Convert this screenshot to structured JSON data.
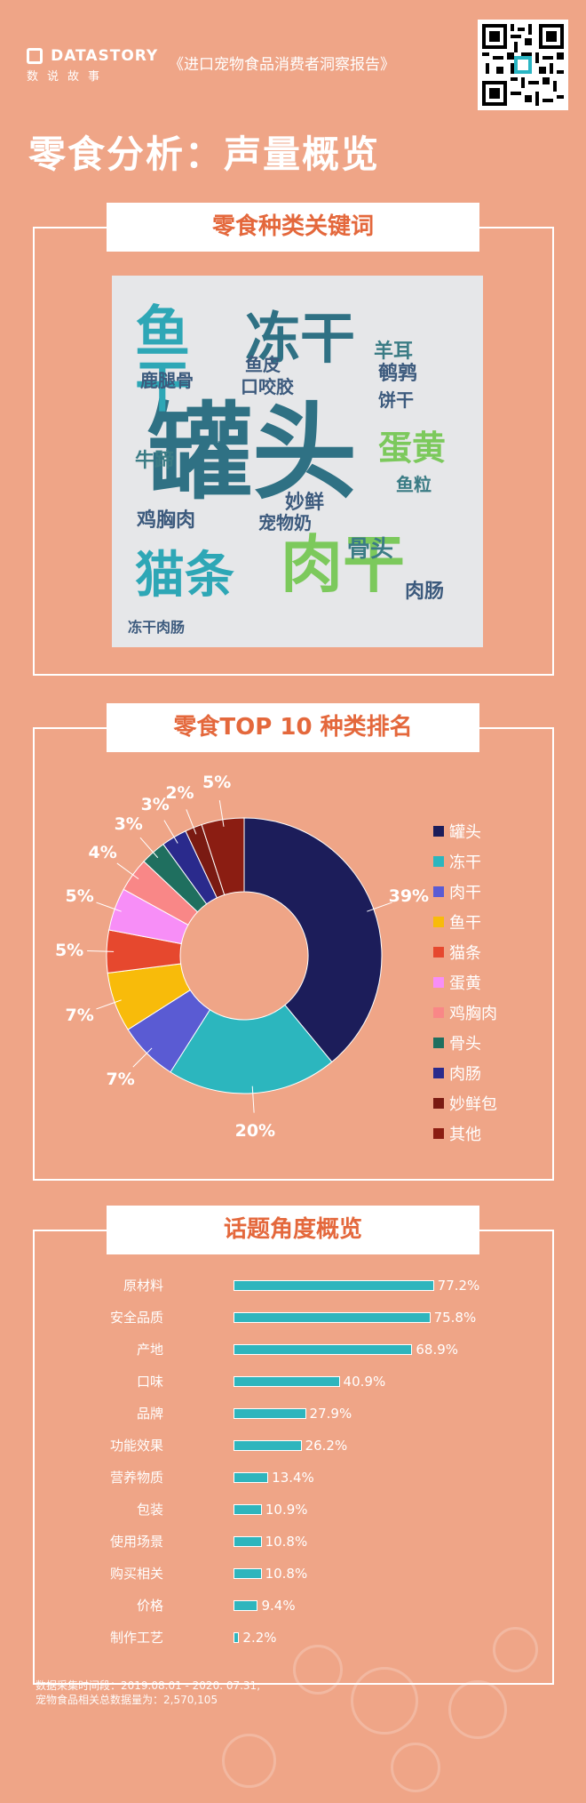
{
  "header": {
    "logo_text": "DATASTORY",
    "logo_sub": "数说故事",
    "report_title": "《进口宠物食品消费者洞察报告》"
  },
  "page_title": "零食分析：声量概览",
  "sections": {
    "keywords_title": "零食种类关键词",
    "ranking_title": "零食TOP 10 种类排名",
    "topics_title": "话题角度概览"
  },
  "wordcloud": [
    {
      "text": "罐头",
      "color": "#2f7184"
    },
    {
      "text": "冻干",
      "color": "#2f7184"
    },
    {
      "text": "鱼干",
      "color": "#2ea7b6"
    },
    {
      "text": "肉干",
      "color": "#7cc95c"
    },
    {
      "text": "猫条",
      "color": "#2ea7b6"
    },
    {
      "text": "蛋黄",
      "color": "#7cc95c"
    },
    {
      "text": "鸡胸肉",
      "color": "#3c5a7d"
    },
    {
      "text": "妙鲜",
      "color": "#3c5a7d"
    },
    {
      "text": "骨头",
      "color": "#3b7c85"
    },
    {
      "text": "牛蹄",
      "color": "#3b7c85"
    },
    {
      "text": "鹌鹑",
      "color": "#3c5a7d"
    },
    {
      "text": "肉肠",
      "color": "#3c5a7d"
    },
    {
      "text": "鱼皮",
      "color": "#3c5a7d"
    },
    {
      "text": "饼干",
      "color": "#3c5a7d"
    },
    {
      "text": "宠物奶",
      "color": "#3c5a7d"
    },
    {
      "text": "口咬胶",
      "color": "#3c5a7d"
    },
    {
      "text": "鹿腿骨",
      "color": "#3c5a7d"
    },
    {
      "text": "羊耳",
      "color": "#3b7c85"
    },
    {
      "text": "鱼粒",
      "color": "#3b7c85"
    },
    {
      "text": "冻干肉肠",
      "color": "#3c5a7d"
    }
  ],
  "chart_data": [
    {
      "type": "pie",
      "title": "零食TOP 10 种类排名",
      "categories": [
        "罐头",
        "冻干",
        "肉干",
        "鱼干",
        "猫条",
        "蛋黄",
        "鸡胸肉",
        "骨头",
        "肉肠",
        "妙鲜包",
        "其他"
      ],
      "values": [
        39,
        20,
        7,
        7,
        5,
        5,
        4,
        3,
        3,
        2,
        5
      ],
      "unit": "%",
      "colors": [
        "#1c1d5a",
        "#2cb6be",
        "#5a5bd3",
        "#f8bb0a",
        "#e6482e",
        "#f78ef7",
        "#f98787",
        "#1f6f5f",
        "#2a2a8c",
        "#7a1a12",
        "#8b1d12"
      ],
      "legend": "right"
    },
    {
      "type": "bar",
      "orientation": "horizontal",
      "title": "话题角度概览",
      "categories": [
        "原材料",
        "安全品质",
        "产地",
        "口味",
        "品牌",
        "功能效果",
        "营养物质",
        "包装",
        "使用场景",
        "购买相关",
        "价格",
        "制作工艺"
      ],
      "values": [
        77.2,
        75.8,
        68.9,
        40.9,
        27.9,
        26.2,
        13.4,
        10.9,
        10.8,
        10.8,
        9.4,
        2.2
      ],
      "unit": "%",
      "xlim": [
        0,
        100
      ]
    }
  ],
  "footer": {
    "line1": "数据采集时间段：2019.08.01 - 2020. 07.31,",
    "line2": "宠物食品相关总数据量为：2,570,105"
  }
}
